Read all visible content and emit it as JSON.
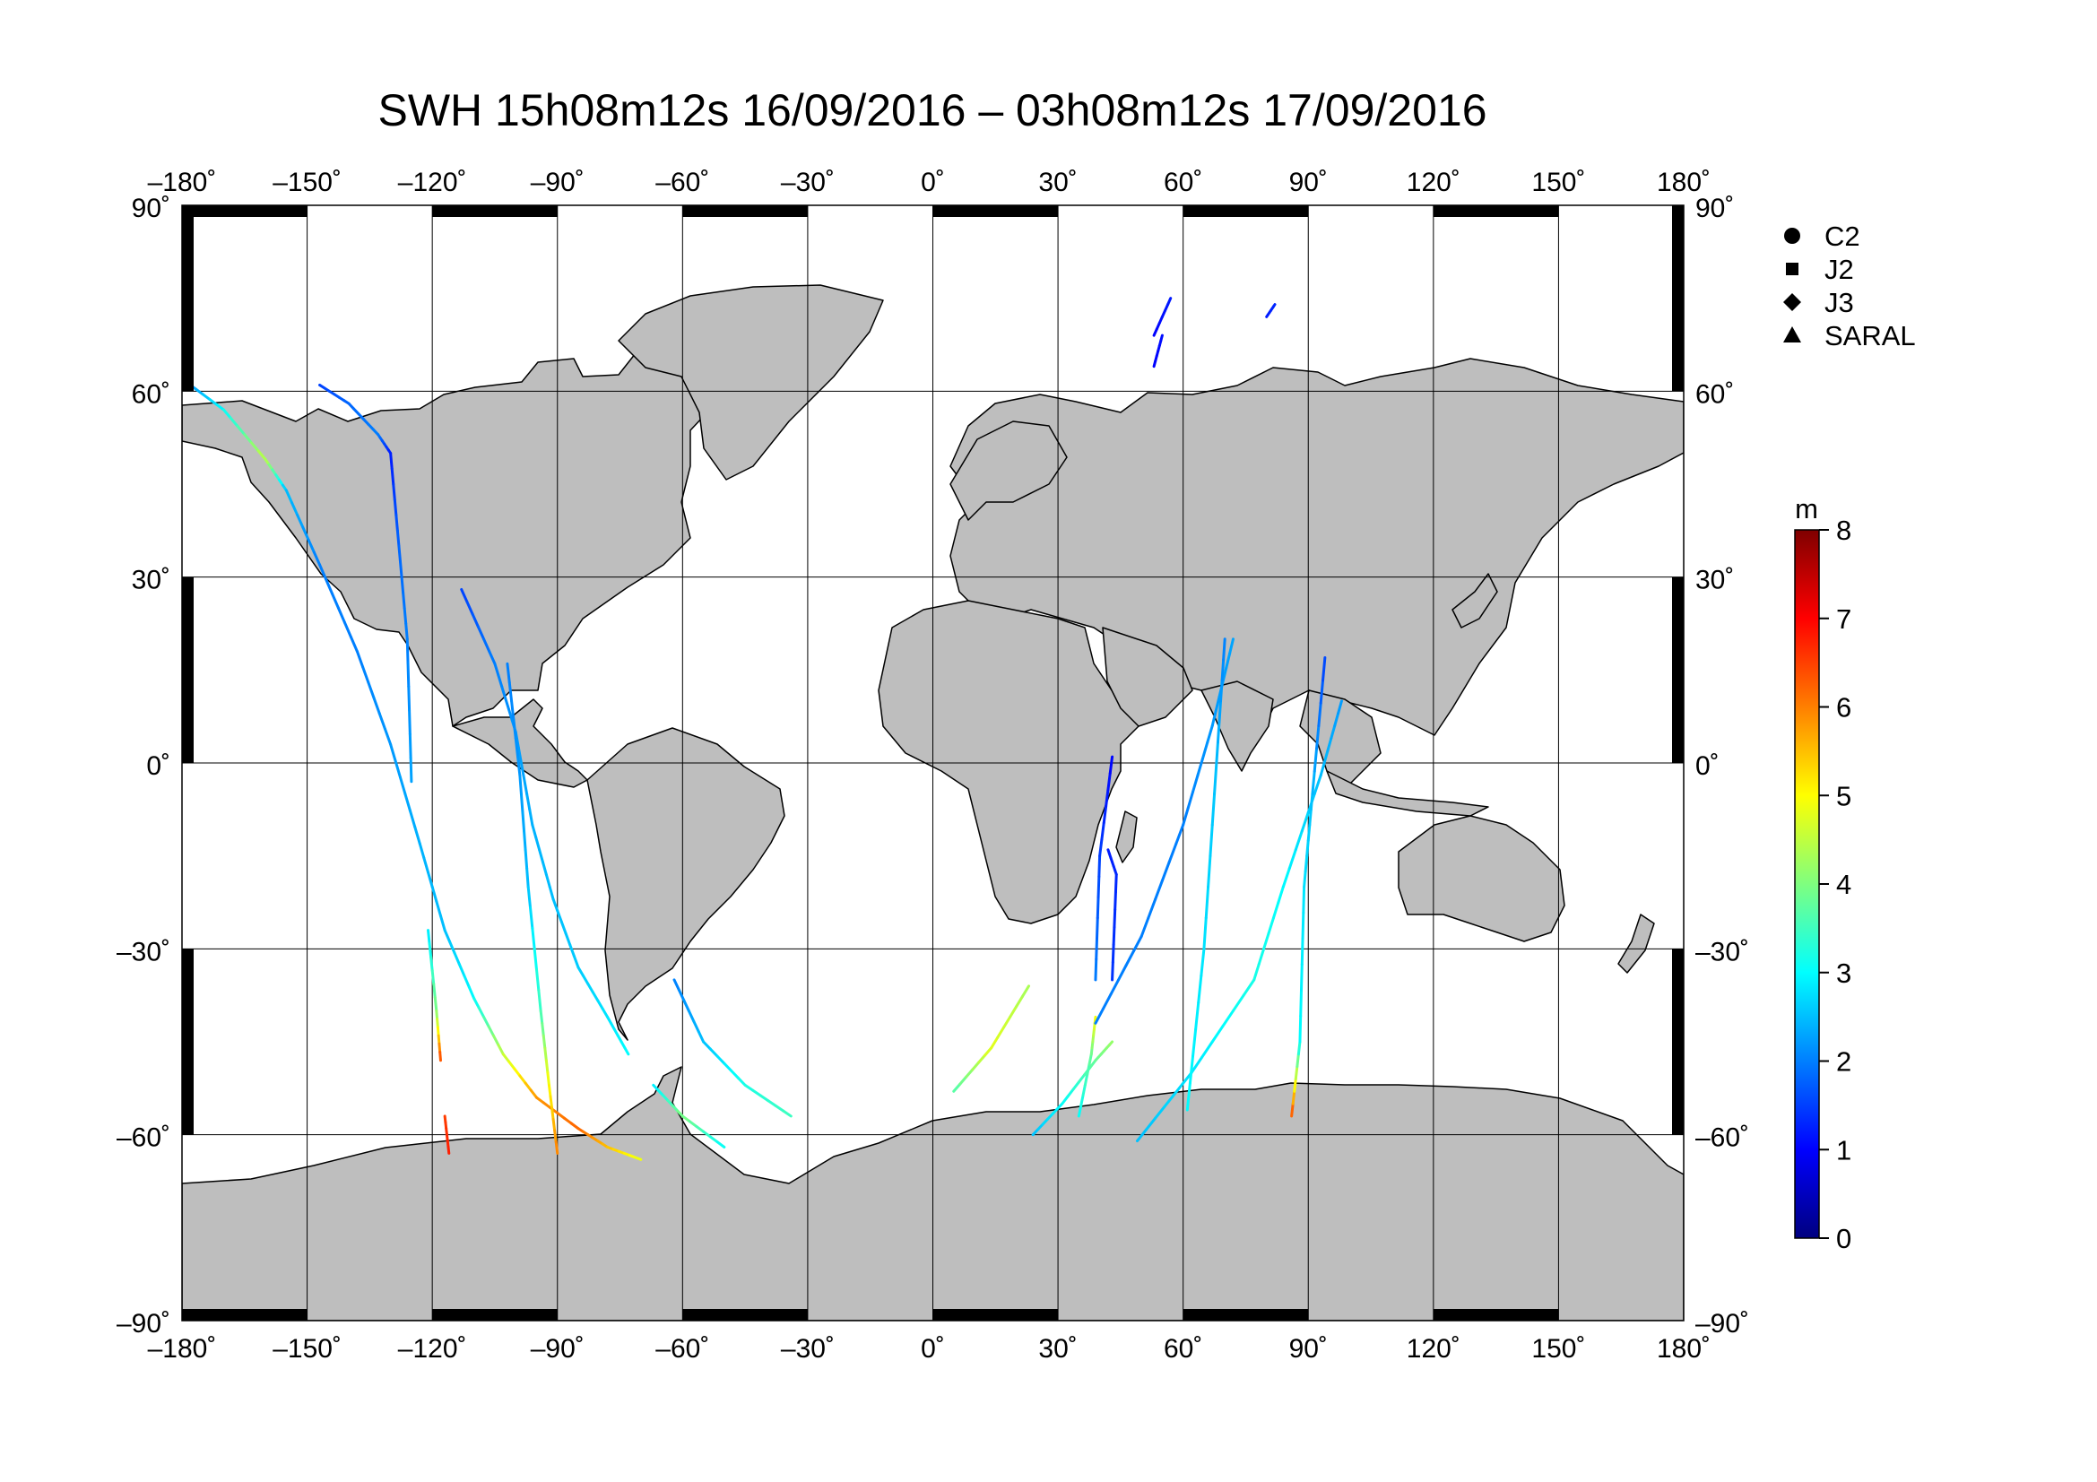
{
  "title": "SWH 15h08m12s 16/09/2016 – 03h08m12s 17/09/2016",
  "lon_ticks": [
    "–180˚",
    "–150˚",
    "–120˚",
    "–90˚",
    "–60˚",
    "–30˚",
    "0˚",
    "30˚",
    "60˚",
    "90˚",
    "120˚",
    "150˚",
    "180˚"
  ],
  "lat_ticks_left": [
    "90˚",
    "60˚",
    "30˚",
    "0˚",
    "–30˚",
    "–60˚",
    "–90˚"
  ],
  "lat_ticks_right": [
    "90˚",
    "60˚",
    "30˚",
    "0˚",
    "–30˚",
    "–60˚",
    "–90˚"
  ],
  "legend": [
    {
      "label": "C2",
      "symbol": "circle"
    },
    {
      "label": "J2",
      "symbol": "square"
    },
    {
      "label": "J3",
      "symbol": "diamond"
    },
    {
      "label": "SARAL",
      "symbol": "triangle"
    }
  ],
  "colorbar": {
    "unit": "m",
    "tick_labels": [
      "0",
      "1",
      "2",
      "3",
      "4",
      "5",
      "6",
      "7",
      "8"
    ],
    "range": [
      0,
      8
    ],
    "colormap": [
      "#00007f",
      "#0000ff",
      "#007fff",
      "#00ffff",
      "#7fff7f",
      "#ffff00",
      "#ff7f00",
      "#ff0000",
      "#7f0000"
    ]
  },
  "colors": {
    "land": "#bebebe",
    "coast": "#000000",
    "grid": "#000000",
    "ocean": "#ffffff"
  },
  "chart_data": {
    "type": "map",
    "projection": "equirectangular",
    "lon_range": [
      -180,
      180
    ],
    "lat_range": [
      -90,
      90
    ],
    "grid": true,
    "legend_position": "top-right",
    "variable": "SWH",
    "tracks": [
      {
        "points": [
          [
            -180,
            62,
            2.0
          ],
          [
            -170,
            57,
            3.0
          ],
          [
            -160,
            49,
            4.5
          ],
          [
            -155,
            44,
            2.5
          ]
        ]
      },
      {
        "points": [
          [
            -155,
            44,
            2.5
          ],
          [
            -147,
            32,
            2.0
          ],
          [
            -138,
            18,
            2.0
          ],
          [
            -130,
            3,
            2.2
          ],
          [
            -123,
            -13,
            2.4
          ],
          [
            -117,
            -27,
            2.5
          ],
          [
            -110,
            -38,
            3.0
          ],
          [
            -103,
            -47,
            4.5
          ],
          [
            -95,
            -54,
            5.8
          ],
          [
            -85,
            -59,
            6.2
          ],
          [
            -78,
            -62,
            5.5
          ],
          [
            -70,
            -64,
            4.8
          ]
        ]
      },
      {
        "points": [
          [
            -147,
            61,
            1.5
          ],
          [
            -140,
            58,
            1.8
          ],
          [
            -133,
            53,
            2.0
          ],
          [
            -130,
            50,
            1.2
          ],
          [
            -128,
            35,
            1.8
          ],
          [
            -126,
            20,
            2.0
          ],
          [
            -125,
            -3,
            2.3
          ]
        ]
      },
      {
        "points": [
          [
            -121,
            -27,
            2.8
          ],
          [
            -119,
            -40,
            4.0
          ],
          [
            -118,
            -48,
            6.5
          ]
        ]
      },
      {
        "points": [
          [
            -117,
            -57,
            6.5
          ],
          [
            -116,
            -63,
            6.8
          ]
        ]
      },
      {
        "points": [
          [
            -113,
            28,
            1.5
          ],
          [
            -105,
            16,
            2.0
          ],
          [
            -100,
            5,
            2.2
          ],
          [
            -96,
            -10,
            2.4
          ],
          [
            -91,
            -22,
            2.5
          ],
          [
            -85,
            -33,
            2.6
          ],
          [
            -78,
            -41,
            2.8
          ],
          [
            -73,
            -47,
            3.0
          ]
        ]
      },
      {
        "points": [
          [
            -102,
            16,
            2.0
          ],
          [
            -99,
            -2,
            2.2
          ],
          [
            -97,
            -20,
            2.5
          ],
          [
            -94,
            -40,
            3.5
          ],
          [
            -92,
            -52,
            5.0
          ],
          [
            -90,
            -63,
            6.0
          ]
        ]
      },
      {
        "points": [
          [
            -62,
            -35,
            2.0
          ],
          [
            -55,
            -45,
            2.5
          ],
          [
            -45,
            -52,
            3.2
          ],
          [
            -34,
            -57,
            3.5
          ]
        ]
      },
      {
        "points": [
          [
            -67,
            -52,
            2.8
          ],
          [
            -60,
            -57,
            4.0
          ],
          [
            -50,
            -62,
            3.0
          ]
        ]
      },
      {
        "points": [
          [
            5,
            -53,
            3.6
          ],
          [
            14,
            -46,
            4.8
          ],
          [
            23,
            -36,
            4.3
          ]
        ]
      },
      {
        "points": [
          [
            24,
            -60,
            2.5
          ],
          [
            31,
            -55,
            3.0
          ],
          [
            39,
            -48,
            3.8
          ],
          [
            43,
            -45,
            4.2
          ]
        ]
      },
      {
        "points": [
          [
            35,
            -57,
            3.0
          ],
          [
            38,
            -47,
            3.8
          ],
          [
            39,
            -41,
            5.0
          ]
        ]
      },
      {
        "points": [
          [
            39,
            -35,
            2.0
          ],
          [
            40,
            -15,
            1.5
          ],
          [
            43,
            1,
            1.0
          ]
        ]
      },
      {
        "points": [
          [
            42,
            -14,
            1.2
          ],
          [
            44,
            -18,
            1.3
          ],
          [
            43,
            -35,
            1.4
          ]
        ]
      },
      {
        "points": [
          [
            49,
            -61,
            2.5
          ],
          [
            62,
            -50,
            2.8
          ],
          [
            77,
            -35,
            3.2
          ],
          [
            84,
            -20,
            3.0
          ],
          [
            93,
            -2,
            2.5
          ],
          [
            98,
            10,
            2.2
          ]
        ]
      },
      {
        "points": [
          [
            39,
            -42,
            2.0
          ],
          [
            50,
            -28,
            2.0
          ],
          [
            60,
            -10,
            2.0
          ],
          [
            67,
            6,
            2.2
          ],
          [
            72,
            20,
            2.3
          ]
        ]
      },
      {
        "points": [
          [
            61,
            -56,
            3.0
          ],
          [
            65,
            -30,
            2.8
          ],
          [
            68,
            0,
            2.5
          ],
          [
            70,
            20,
            2.0
          ]
        ]
      },
      {
        "points": [
          [
            86,
            -57,
            6.5
          ],
          [
            88,
            -45,
            3.0
          ],
          [
            89,
            -20,
            2.8
          ],
          [
            91,
            -5,
            2.5
          ],
          [
            94,
            17,
            1.5
          ]
        ]
      },
      {
        "points": [
          [
            53,
            69,
            1.0
          ],
          [
            57,
            75,
            1.2
          ]
        ]
      },
      {
        "points": [
          [
            53,
            64,
            1.0
          ],
          [
            55,
            69,
            1.1
          ]
        ]
      },
      {
        "points": [
          [
            80,
            72,
            1.2
          ],
          [
            82,
            74,
            1.3
          ]
        ]
      }
    ]
  }
}
